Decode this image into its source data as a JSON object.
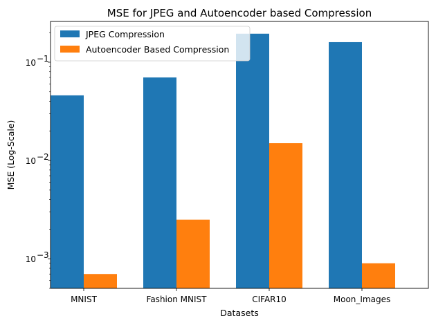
{
  "chart_data": {
    "type": "bar",
    "title": "MSE for JPEG and Autoencoder based Compression",
    "xlabel": "Datasets",
    "ylabel": "MSE (Log-Scale)",
    "yscale": "log",
    "ylim": [
      0.0005,
      0.26
    ],
    "grid": false,
    "legend_position": "upper-left",
    "categories": [
      "MNIST",
      "Fashion MNIST",
      "CIFAR10",
      "Moon_Images"
    ],
    "series": [
      {
        "name": "JPEG Compression",
        "color": "#1f77b4",
        "values": [
          0.046,
          0.07,
          0.195,
          0.16
        ]
      },
      {
        "name": "Autoencoder Based Compression",
        "color": "#ff7f0e",
        "values": [
          0.0007,
          0.0025,
          0.015,
          0.0009
        ]
      }
    ],
    "yticks": [
      {
        "value": 0.001,
        "base": "10",
        "exp": "−3"
      },
      {
        "value": 0.01,
        "base": "10",
        "exp": "−2"
      },
      {
        "value": 0.1,
        "base": "10",
        "exp": "−1"
      }
    ]
  }
}
